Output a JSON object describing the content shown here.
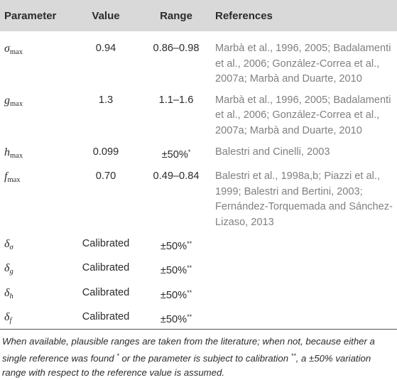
{
  "headers": {
    "parameter": "Parameter",
    "value": "Value",
    "range": "Range",
    "references": "References"
  },
  "rows": [
    {
      "symbol": "σ",
      "subscript": "max",
      "value": "0.94",
      "range": "0.86–0.98",
      "references": "Marbà et al., 1996, 2005; Badalamenti et al., 2006; González-Correa et al., 2007a; Marbà and Duarte, 2010"
    },
    {
      "symbol": "g",
      "subscript": "max",
      "value": "1.3",
      "range": "1.1–1.6",
      "references": "Marbà et al., 1996, 2005; Badalamenti et al., 2006; González-Correa et al., 2007a; Marbà and Duarte, 2010"
    },
    {
      "symbol": "h",
      "subscript": "max",
      "value": "0.099",
      "range": "±50%",
      "range_mark": "*",
      "references": "Balestri and Cinelli, 2003"
    },
    {
      "symbol": "f",
      "subscript": "max",
      "value": "0.70",
      "range": "0.49–0.84",
      "references": "Balestri et al., 1998a,b; Piazzi et al., 1999; Balestri and Bertini, 2003; Fernández-Torquemada and Sánchez-Lizaso, 2013"
    },
    {
      "symbol": "δ",
      "subscript": "σ",
      "value": "Calibrated",
      "range": "±50%",
      "range_mark": "**",
      "references": ""
    },
    {
      "symbol": "δ",
      "subscript": "g",
      "value": "Calibrated",
      "range": "±50%",
      "range_mark": "**",
      "references": ""
    },
    {
      "symbol": "δ",
      "subscript": "h",
      "value": "Calibrated",
      "range": "±50%",
      "range_mark": "**",
      "references": ""
    },
    {
      "symbol": "δ",
      "subscript": "f",
      "value": "Calibrated",
      "range": "±50%",
      "range_mark": "**",
      "references": ""
    }
  ],
  "footnote": {
    "part1": "When available, plausible ranges are taken from the literature; when not, because either a single reference was found ",
    "mark1": "*",
    "part2": " or the parameter is subject to calibration ",
    "mark2": "**",
    "part3": ", a ±50% variation range with respect to the reference value is assumed."
  }
}
